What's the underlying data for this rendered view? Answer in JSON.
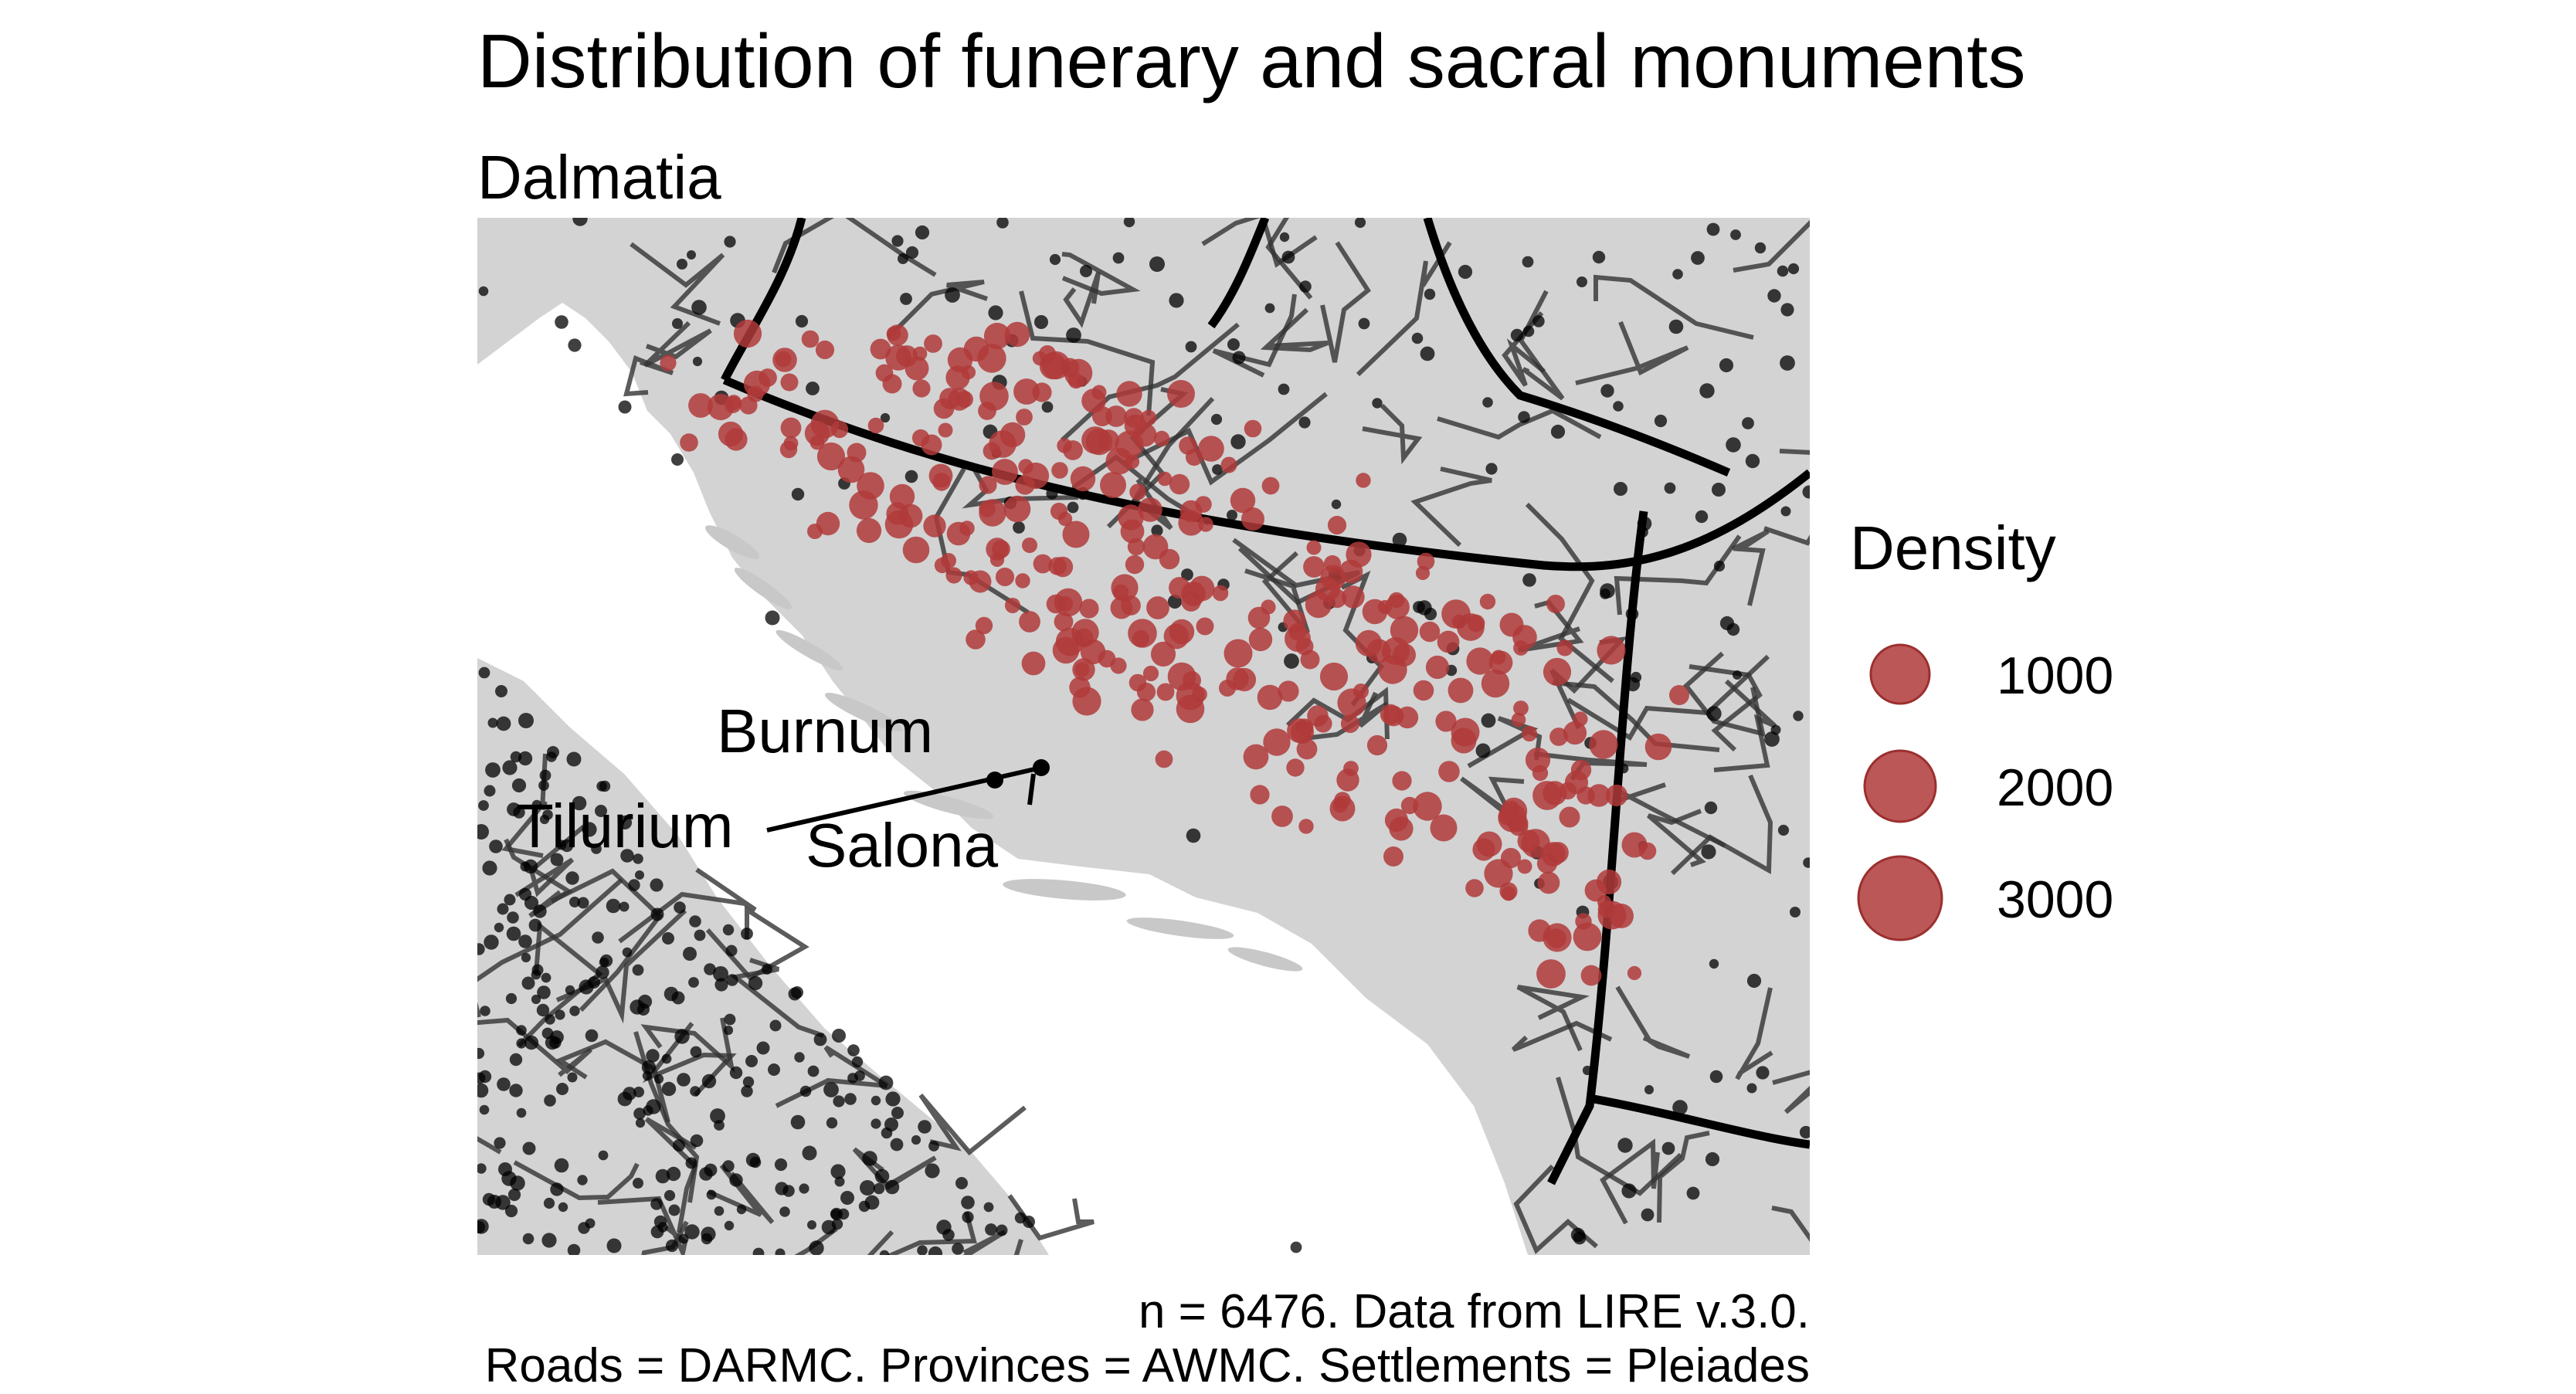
{
  "title": "Distribution of funerary and sacral monuments",
  "subtitle": "Dalmatia",
  "legend": {
    "title": "Density",
    "items": [
      {
        "label": "1000",
        "value": 1000
      },
      {
        "label": "2000",
        "value": 2000
      },
      {
        "label": "3000",
        "value": 3000
      }
    ]
  },
  "labels": {
    "burnum": "Burnum",
    "tilurium": "Tilurium",
    "salona": "Salona"
  },
  "caption": {
    "line1": "n = 6476. Data from LIRE v.3.0.",
    "line2": "Roads = DARMC. Provinces = AWMC. Settlements = Pleiades"
  },
  "colors": {
    "land": "#d3d3d3",
    "sea": "#ffffff",
    "roads": "#333333",
    "provinces": "#000000",
    "settlements": "#000000",
    "monuments": "#b03a3a"
  }
}
